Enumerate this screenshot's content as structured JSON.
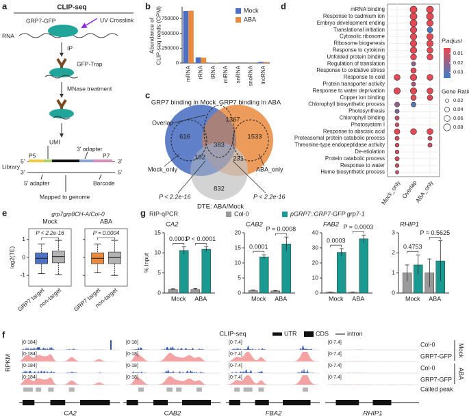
{
  "panel_labels": [
    "a",
    "b",
    "c",
    "d",
    "e",
    "f",
    "g"
  ],
  "schematic": {
    "title": "CLIP-seq",
    "protein": "GRP7-GFP",
    "uv": "UV Crosslink",
    "rna": "RNA",
    "ip": "IP",
    "trap": "GFP-Trap",
    "mnase": "MNase treatment",
    "umi": "UMI",
    "adapter3": "3' adapter",
    "p5": "P5",
    "p7": "P7",
    "library": "Library",
    "end5a": "5'",
    "end3a": "3'",
    "end3b": "3'",
    "end5b": "5'",
    "adapter5": "5' adapter",
    "barcode": "Barcode",
    "mapped": "Mapped to genome"
  },
  "chart_data": [
    {
      "type": "bar",
      "ylabel": [
        "Abundance of",
        "CLIP-seq reads (CPM)"
      ],
      "categories": [
        "mRNA",
        "rRNA",
        "tRNA",
        "miRNA",
        "snRNA",
        "snoRNA",
        "lncRNA"
      ],
      "series": [
        {
          "name": "Mock",
          "color": "#4f70c2",
          "values": [
            880000,
            95000,
            6000,
            1500,
            1000,
            2500,
            18000
          ]
        },
        {
          "name": "ABA",
          "color": "#ea8a3e",
          "values": [
            885000,
            90000,
            5000,
            1200,
            800,
            2000,
            16000
          ]
        }
      ],
      "ylim": [
        0,
        950000
      ],
      "yticks": [
        0,
        250000,
        500000,
        750000
      ],
      "legend": "upper right"
    },
    {
      "type": "venn",
      "sets": [
        {
          "name": "GRP7 binding in Mock",
          "color": "#4f73c4"
        },
        {
          "name": "GRP7 binding in ABA",
          "color": "#ea8a3e"
        },
        {
          "name": "DTE: ABA/Mock",
          "color": "#c4c4c4"
        }
      ],
      "regions": [
        616,
        1367,
        1533,
        383,
        102,
        231,
        832
      ],
      "annotations": [
        "Overlap",
        "Mock_only",
        "ABA_only",
        "P < 2.2e-16",
        "P < 2.2e-16"
      ]
    },
    {
      "type": "dot",
      "terms": [
        "mRNA binding",
        "Response to cadmium ion",
        "Embryo development ending",
        "Translational initiation",
        "Cytosolic ribosome",
        "Ribosome biogenesis",
        "Response to cytokinin",
        "Unfolded protein binding",
        "Regulation of translation",
        "Response to oxidative stress",
        "Response to cold",
        "Protein transporter activity",
        "Response to water deprivation",
        "Copper ion binding",
        "Chlorophyll biosynthetic process",
        "Photosynthesis",
        "Chlorophyll binding",
        "Photosystem I",
        "Response to abscisic acid",
        "Proteasomal protein catabolic process",
        "Threonine-type endopeptidase activity",
        "De-etiolation",
        "Protein catabolic process",
        "Response to water",
        "Heme biosynthetic process"
      ],
      "series": [
        {
          "name": "Mock_only",
          "gene_ratio": [
            null,
            null,
            null,
            null,
            null,
            null,
            null,
            null,
            null,
            null,
            0.06,
            null,
            0.07,
            null,
            0.04,
            0.03,
            0.03,
            0.025,
            0.05,
            0.03,
            0.025,
            0.025,
            0.03,
            0.025,
            0.02
          ],
          "p_adjust": [
            null,
            null,
            null,
            null,
            null,
            null,
            null,
            null,
            null,
            null,
            0.005,
            null,
            0.006,
            null,
            0.02,
            0.025,
            0.012,
            0.01,
            0.005,
            0.008,
            0.008,
            0.01,
            0.008,
            0.01,
            0.012
          ]
        },
        {
          "name": "Overlap",
          "gene_ratio": [
            0.08,
            0.08,
            0.08,
            0.07,
            0.07,
            0.07,
            0.07,
            0.06,
            0.03,
            0.05,
            0.07,
            0.03,
            0.07,
            0.05,
            0.04,
            null,
            null,
            null,
            0.06,
            null,
            null,
            null,
            null,
            null,
            null
          ],
          "p_adjust": [
            0.005,
            0.005,
            0.005,
            0.006,
            0.005,
            0.005,
            0.005,
            0.005,
            0.02,
            0.006,
            0.005,
            0.015,
            0.005,
            0.006,
            0.03,
            null,
            null,
            null,
            0.005,
            null,
            null,
            null,
            null,
            null,
            null
          ]
        },
        {
          "name": "ABA_only",
          "gene_ratio": [
            0.08,
            0.08,
            0.07,
            0.05,
            0.07,
            0.07,
            0.06,
            0.06,
            null,
            null,
            0.06,
            null,
            0.06,
            0.05,
            null,
            null,
            null,
            null,
            0.06,
            0.03,
            0.03,
            null,
            null,
            null,
            null
          ],
          "p_adjust": [
            0.005,
            0.005,
            0.005,
            0.035,
            0.005,
            0.005,
            0.005,
            0.005,
            null,
            null,
            0.005,
            null,
            0.005,
            0.006,
            null,
            null,
            null,
            null,
            0.005,
            0.01,
            0.01,
            null,
            null,
            null,
            null
          ]
        }
      ],
      "color_title": "P.adjust",
      "clim": [
        0.004,
        0.036
      ],
      "cticks": [
        0.01,
        0.02,
        0.03
      ],
      "size_title": "Gene Ratio",
      "sizes": [
        0.02,
        0.04,
        0.06,
        0.08
      ]
    },
    {
      "type": "box",
      "title": "grp7grp8CH-A/Col-0",
      "ylabel": "log2(TE)",
      "ylim": [
        -1.6,
        1.6
      ],
      "yticks": [
        -1,
        0,
        1
      ],
      "categories": [
        "GRP7 target",
        "non-target"
      ],
      "panels": [
        {
          "title": "Mock",
          "p_label": "P < 2.2e-16",
          "boxes": [
            {
              "color": "#4f73c4",
              "low": -0.9,
              "q1": -0.35,
              "median": -0.05,
              "q3": 0.25,
              "high": 0.75
            },
            {
              "color": "#b3b3b3",
              "low": -0.95,
              "q1": -0.3,
              "median": 0.05,
              "q3": 0.35,
              "high": 0.95
            }
          ]
        },
        {
          "title": "ABA",
          "p_label": "P = 0.0004",
          "boxes": [
            {
              "color": "#ea8a3e",
              "low": -0.85,
              "q1": -0.35,
              "median": -0.05,
              "q3": 0.25,
              "high": 0.75
            },
            {
              "color": "#b3b3b3",
              "low": -1.0,
              "q1": -0.35,
              "median": 0.0,
              "q3": 0.3,
              "high": 0.95
            }
          ]
        }
      ]
    },
    {
      "type": "bar",
      "title": "RIP-qPCR",
      "ylabel": "% Input",
      "categories": [
        "Mock",
        "ABA"
      ],
      "legend": [
        {
          "name": "Col-0",
          "color": "#9a9a9a"
        },
        {
          "name": "pGRP7::GRP7-GFP grp7-1",
          "color": "#1a9990"
        }
      ],
      "panels": [
        {
          "title": "CA2",
          "ylim": [
            0,
            15
          ],
          "yticks": [
            0,
            5,
            10,
            15
          ],
          "p_labels": [
            "0.0001",
            "P < 0.0001"
          ],
          "series": [
            {
              "values": [
                0.9,
                0.9
              ],
              "errors": [
                0.15,
                0.2
              ]
            },
            {
              "values": [
                10.6,
                10.9
              ],
              "errors": [
                0.9,
                0.6
              ]
            }
          ]
        },
        {
          "title": "CAB2",
          "ylim": [
            0,
            20
          ],
          "yticks": [
            0,
            5,
            10,
            15,
            20
          ],
          "p_labels": [
            "0.0001",
            "P = 0.0008"
          ],
          "series": [
            {
              "values": [
                0.8,
                0.7
              ],
              "errors": [
                0.2,
                0.15
              ]
            },
            {
              "values": [
                12,
                16.3
              ],
              "errors": [
                0.7,
                2.3
              ]
            }
          ]
        },
        {
          "title": "FAB2",
          "ylim": [
            0,
            40
          ],
          "yticks": [
            0,
            10,
            20,
            30,
            40
          ],
          "p_labels": [
            "0.0003",
            "P = 0.0003"
          ],
          "series": [
            {
              "values": [
                0.5,
                0.5
              ],
              "errors": [
                0.2,
                0.2
              ]
            },
            {
              "values": [
                27,
                36
              ],
              "errors": [
                2.5,
                2.5
              ]
            }
          ]
        },
        {
          "title": "RHIP1",
          "ylim": [
            0,
            3
          ],
          "yticks": [
            0,
            1,
            2,
            3
          ],
          "p_labels": [
            "0.4753",
            "P = 0.5625"
          ],
          "series": [
            {
              "values": [
                1.0,
                1.0
              ],
              "errors": [
                0.4,
                0.7
              ]
            },
            {
              "values": [
                1.4,
                1.6
              ],
              "errors": [
                0.5,
                1.0
              ]
            }
          ]
        }
      ]
    }
  ],
  "tracks": {
    "title": "CLIP-seq",
    "legend": [
      "UTR",
      "CDS",
      "intron"
    ],
    "ylabel": "RPKM",
    "rows": [
      "Col-0",
      "GRP7-GFP",
      "Col-0",
      "GRP7-GFP",
      "Called peak"
    ],
    "conditions": [
      "Mock",
      "ABA"
    ],
    "genes": [
      {
        "name": "CA2",
        "range": "[0-184]"
      },
      {
        "name": "CAB2",
        "range": "[0-18]"
      },
      {
        "name": "FBA2",
        "range": "[0-7.4]"
      },
      {
        "name": "RHIP1",
        "range": "[0-7.4]"
      }
    ]
  }
}
